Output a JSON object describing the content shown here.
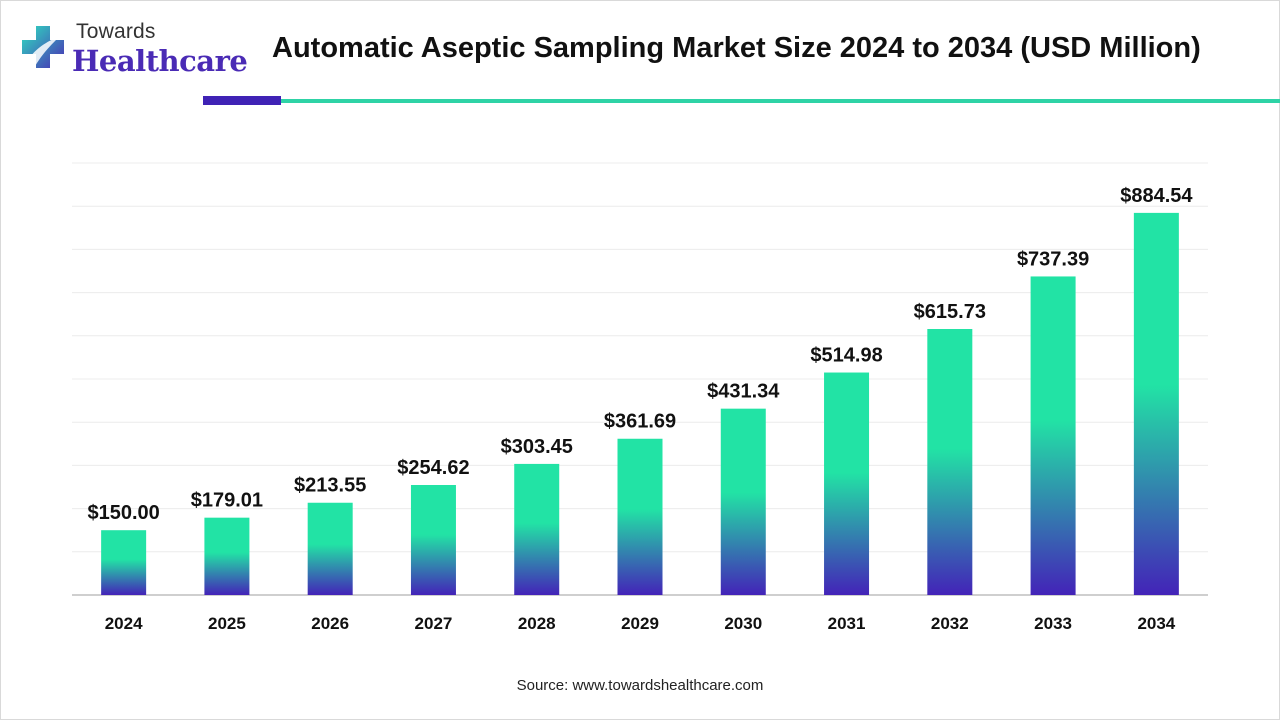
{
  "logo": {
    "top_text": "Towards",
    "bottom_text": "Healthcare"
  },
  "title": "Automatic Aseptic Sampling Market Size 2024 to 2034 (USD Million)",
  "source": "Source: www.towardshealthcare.com",
  "colors": {
    "bar_top": "#22e3a5",
    "bar_bottom": "#4323b8",
    "accent_purple": "#3f22b5",
    "accent_teal": "#2ed3a6"
  },
  "chart_data": {
    "type": "bar",
    "title": "Automatic Aseptic Sampling Market Size 2024 to 2034 (USD Million)",
    "categories": [
      "2024",
      "2025",
      "2026",
      "2027",
      "2028",
      "2029",
      "2030",
      "2031",
      "2032",
      "2033",
      "2034"
    ],
    "values": [
      150.0,
      179.01,
      213.55,
      254.62,
      303.45,
      361.69,
      431.34,
      514.98,
      615.73,
      737.39,
      884.54
    ],
    "data_labels": [
      "$150.00",
      "$179.01",
      "$213.55",
      "$254.62",
      "$303.45",
      "$361.69",
      "$431.34",
      "$514.98",
      "$615.73",
      "$737.39",
      "$884.54"
    ],
    "xlabel": "",
    "ylabel": "",
    "ylim": [
      0,
      1000
    ],
    "grid": true,
    "legend": "none"
  }
}
